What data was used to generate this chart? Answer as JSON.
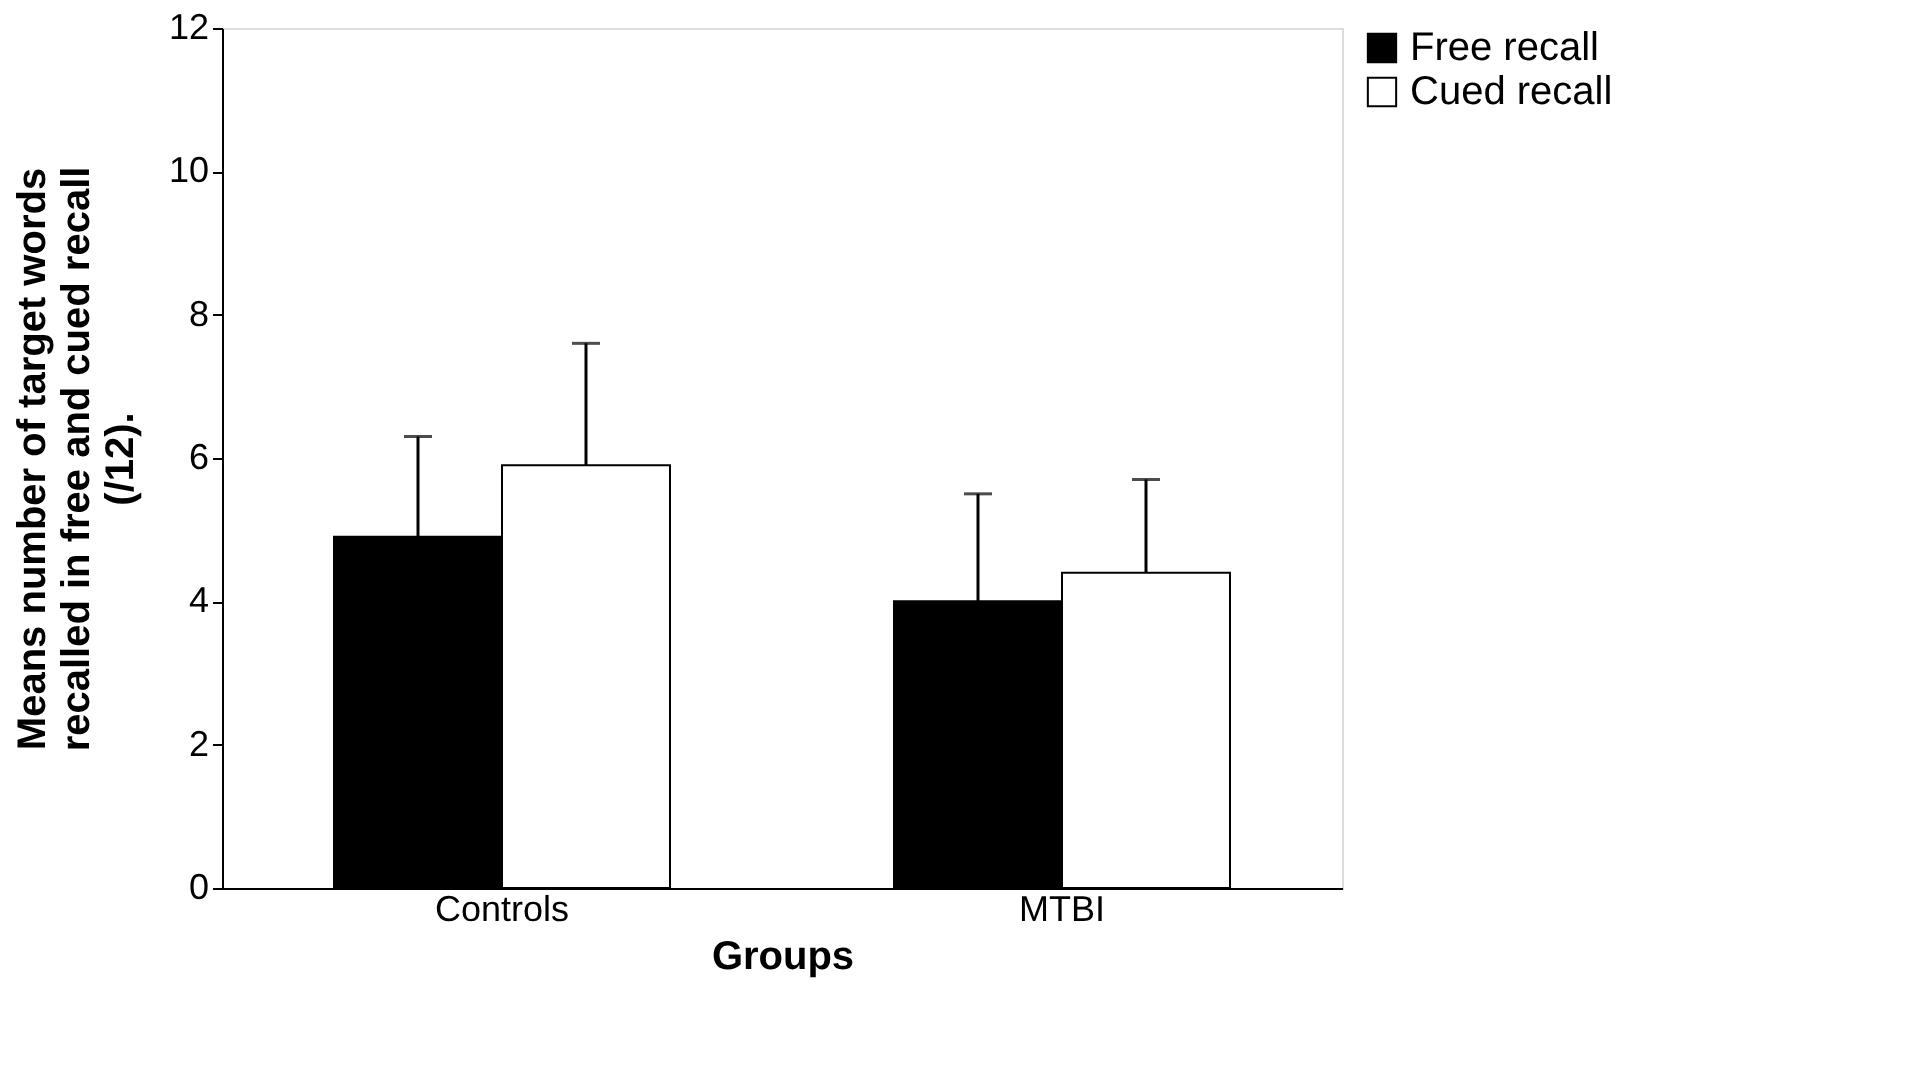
{
  "chart_data": {
    "type": "bar",
    "xlabel": "Groups",
    "ylabel": "Means number of target words recalled in free and cued recall (/12).",
    "categories": [
      "Controls",
      "MTBI"
    ],
    "series": [
      {
        "name": "Free recall",
        "color": "#000000",
        "values": [
          4.9,
          4.0
        ],
        "errors": [
          [
            4.9,
            6.3
          ],
          [
            4.0,
            5.5
          ]
        ]
      },
      {
        "name": "Cued recall",
        "color": "#ffffff",
        "values": [
          5.9,
          4.4
        ],
        "errors": [
          [
            5.9,
            7.6
          ],
          [
            4.4,
            5.7
          ]
        ]
      }
    ],
    "ylim": [
      0,
      12
    ],
    "yticks": [
      0,
      2,
      4,
      6,
      8,
      10,
      12
    ],
    "grid": false,
    "legend": "right"
  }
}
